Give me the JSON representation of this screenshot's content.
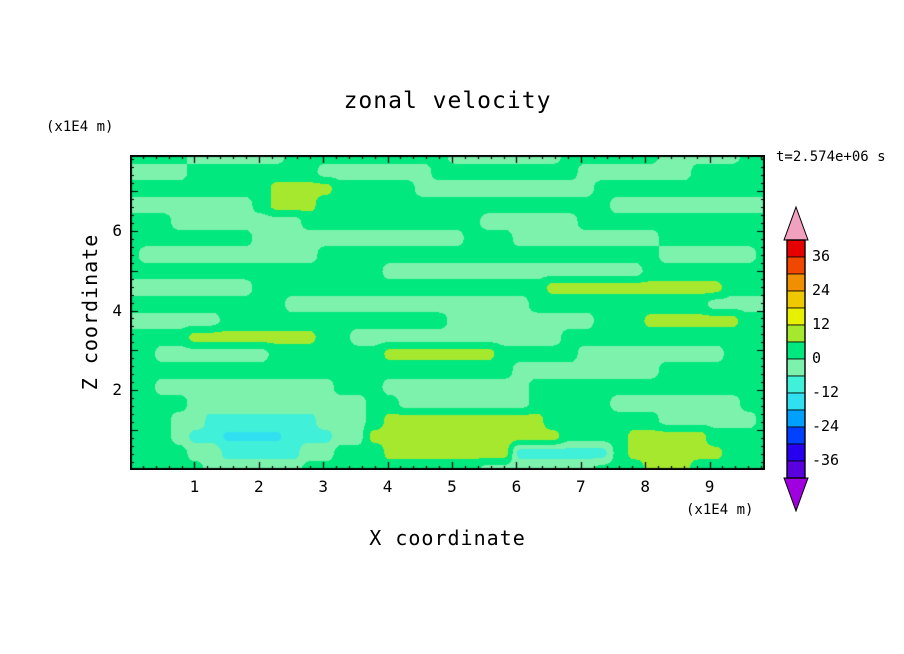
{
  "title": "zonal velocity",
  "annotations": {
    "time": "t=2.574e+06 s",
    "y_units": "(x1E4 m)",
    "x_units": "(x1E4 m)"
  },
  "axes": {
    "x_label": "X coordinate",
    "y_label": "Z coordinate",
    "x_ticks": [
      1,
      2,
      3,
      4,
      5,
      6,
      7,
      8,
      9
    ],
    "y_ticks": [
      2,
      4,
      6
    ],
    "x_range": [
      0,
      9.86
    ],
    "y_range": [
      0,
      7.9
    ],
    "minor_tick_step": 0.2
  },
  "colorbar": {
    "tick_labels": [
      36,
      24,
      12,
      0,
      -12,
      -24,
      -36
    ],
    "levels": [
      -42,
      -36,
      -30,
      -24,
      -18,
      -12,
      -6,
      0,
      6,
      12,
      18,
      24,
      30,
      36,
      42
    ],
    "colors": [
      "#5a00e0",
      "#2800f0",
      "#0040ff",
      "#00a0ff",
      "#30e0f0",
      "#40f0d8",
      "#7cf2ac",
      "#00e87e",
      "#a6e82e",
      "#e6f000",
      "#f0c800",
      "#f09000",
      "#f04800",
      "#e60000"
    ],
    "under_arrow_color": "#a000e0",
    "over_arrow_color": "#f2a0c0"
  },
  "chart_data": {
    "type": "heatmap",
    "title": "zonal velocity",
    "xlabel": "X coordinate (x1E4 m)",
    "ylabel": "Z coordinate (x1E4 m)",
    "time_annotation": "t=2.574e+06 s",
    "x_range": [
      0,
      9.86
    ],
    "y_range": [
      0,
      7.9
    ],
    "contour_interval": 6,
    "legend_position": "right",
    "note": "Filled-contour zonal velocity field. Values estimated from fill colors against the colorbar (contour interval 6). Grid rows ordered from top (y=7.9) to bottom (y=0), columns left (x=0) to right (x=9.86).",
    "grid_values": [
      [
        2,
        2,
        2,
        2,
        -2,
        -2,
        -2,
        -2,
        -2,
        -2,
        2,
        2,
        2,
        2,
        2,
        2,
        2,
        2,
        2,
        2,
        -2,
        -2,
        -2,
        -2,
        -2,
        -2,
        -2,
        2,
        2,
        2,
        2,
        2,
        2,
        -2,
        -2,
        -2,
        -2,
        -2,
        2,
        2
      ],
      [
        -2,
        -2,
        -2,
        -2,
        2,
        2,
        2,
        2,
        2,
        2,
        2,
        2,
        -2,
        -2,
        -2,
        -2,
        -2,
        -2,
        -2,
        2,
        2,
        2,
        2,
        2,
        2,
        2,
        2,
        2,
        -2,
        -2,
        -2,
        -2,
        -2,
        -2,
        -2,
        2,
        2,
        2,
        2,
        2
      ],
      [
        2,
        2,
        2,
        2,
        2,
        2,
        2,
        2,
        2,
        8,
        8,
        8,
        8,
        2,
        2,
        2,
        2,
        2,
        -2,
        -2,
        -2,
        -2,
        -2,
        -2,
        -2,
        -2,
        -2,
        -2,
        -2,
        2,
        2,
        2,
        2,
        2,
        2,
        2,
        2,
        2,
        2,
        2
      ],
      [
        -2,
        -2,
        -2,
        -2,
        -2,
        -2,
        -2,
        -2,
        2,
        8,
        8,
        8,
        2,
        2,
        2,
        2,
        2,
        2,
        2,
        2,
        2,
        2,
        2,
        2,
        2,
        2,
        2,
        2,
        2,
        2,
        -2,
        -2,
        -2,
        -2,
        -2,
        -2,
        -2,
        -2,
        -2,
        -2
      ],
      [
        2,
        2,
        2,
        -2,
        -2,
        -2,
        -2,
        -2,
        -2,
        -2,
        -2,
        2,
        2,
        2,
        2,
        2,
        2,
        2,
        2,
        2,
        2,
        2,
        -2,
        -2,
        -2,
        -2,
        -2,
        -2,
        2,
        2,
        2,
        2,
        2,
        2,
        2,
        2,
        2,
        2,
        2,
        2
      ],
      [
        2,
        2,
        2,
        2,
        2,
        2,
        2,
        2,
        -2,
        -2,
        -2,
        -2,
        -2,
        -2,
        -2,
        -2,
        -2,
        -2,
        -2,
        -2,
        -2,
        2,
        2,
        2,
        -2,
        -2,
        -2,
        -2,
        -2,
        -2,
        -2,
        -2,
        -2,
        2,
        2,
        2,
        2,
        2,
        2,
        2
      ],
      [
        2,
        -2,
        -2,
        -2,
        -2,
        -2,
        -2,
        -2,
        -2,
        -2,
        -2,
        -2,
        2,
        2,
        2,
        2,
        2,
        2,
        2,
        2,
        2,
        2,
        2,
        2,
        2,
        2,
        2,
        2,
        2,
        2,
        2,
        2,
        2,
        -2,
        -2,
        -2,
        -2,
        -2,
        -2,
        2
      ],
      [
        2,
        2,
        2,
        2,
        2,
        2,
        2,
        2,
        2,
        2,
        2,
        2,
        2,
        2,
        2,
        2,
        -2,
        -2,
        -2,
        -2,
        -2,
        -2,
        -2,
        -2,
        -2,
        -2,
        -2,
        -2,
        -2,
        -2,
        -2,
        -2,
        2,
        2,
        2,
        2,
        2,
        2,
        2,
        2
      ],
      [
        -2,
        -2,
        -2,
        -2,
        -2,
        -2,
        -2,
        -2,
        2,
        2,
        2,
        2,
        2,
        2,
        2,
        2,
        2,
        2,
        2,
        2,
        2,
        2,
        2,
        2,
        2,
        2,
        8,
        8,
        8,
        8,
        8,
        8,
        8,
        8,
        8,
        8,
        8,
        2,
        2,
        2
      ],
      [
        2,
        2,
        2,
        2,
        2,
        2,
        2,
        2,
        2,
        2,
        -2,
        -2,
        -2,
        -2,
        -2,
        -2,
        -2,
        -2,
        -2,
        -2,
        -2,
        -2,
        -2,
        -2,
        -2,
        2,
        2,
        2,
        2,
        2,
        2,
        2,
        2,
        2,
        2,
        2,
        -2,
        -2,
        -2,
        -2
      ],
      [
        -2,
        -2,
        -2,
        -2,
        -2,
        -2,
        2,
        2,
        2,
        2,
        2,
        2,
        2,
        2,
        2,
        2,
        2,
        2,
        2,
        2,
        -2,
        -2,
        -2,
        -2,
        -2,
        -2,
        -2,
        -2,
        -2,
        2,
        2,
        2,
        8,
        8,
        8,
        8,
        8,
        8,
        2,
        2
      ],
      [
        2,
        2,
        2,
        2,
        8,
        8,
        8,
        8,
        8,
        8,
        8,
        8,
        2,
        2,
        -2,
        -2,
        -2,
        -2,
        -2,
        -2,
        -2,
        -2,
        -2,
        -2,
        -2,
        -2,
        -2,
        2,
        2,
        2,
        2,
        2,
        2,
        2,
        2,
        2,
        2,
        2,
        2,
        2
      ],
      [
        2,
        2,
        -2,
        -2,
        -2,
        -2,
        -2,
        -2,
        -2,
        2,
        2,
        2,
        2,
        2,
        2,
        2,
        8,
        8,
        8,
        8,
        8,
        8,
        8,
        2,
        2,
        2,
        2,
        2,
        -2,
        -2,
        -2,
        -2,
        -2,
        -2,
        -2,
        -2,
        -2,
        2,
        2,
        2
      ],
      [
        2,
        2,
        2,
        2,
        2,
        2,
        2,
        2,
        2,
        2,
        2,
        2,
        2,
        2,
        2,
        2,
        2,
        2,
        2,
        2,
        2,
        2,
        2,
        2,
        -2,
        -2,
        -2,
        -2,
        -2,
        -2,
        -2,
        -2,
        -2,
        2,
        2,
        2,
        2,
        2,
        2,
        2
      ],
      [
        2,
        2,
        -2,
        -2,
        -2,
        -2,
        -2,
        -2,
        -2,
        -2,
        -2,
        -2,
        -2,
        2,
        2,
        2,
        -2,
        -2,
        -2,
        -2,
        -2,
        -2,
        -2,
        -2,
        -2,
        2,
        2,
        2,
        2,
        2,
        2,
        2,
        2,
        2,
        2,
        2,
        2,
        2,
        2,
        2
      ],
      [
        2,
        2,
        2,
        2,
        -2,
        -2,
        -2,
        -2,
        -2,
        -2,
        -2,
        -2,
        -2,
        -2,
        -2,
        2,
        2,
        -2,
        -2,
        -2,
        -2,
        -2,
        -2,
        -2,
        -2,
        2,
        2,
        2,
        2,
        2,
        -2,
        -2,
        -2,
        -2,
        -2,
        -2,
        -2,
        -2,
        2,
        2
      ],
      [
        2,
        2,
        2,
        -2,
        -2,
        -8,
        -8,
        -8,
        -8,
        -8,
        -8,
        -8,
        -2,
        -2,
        -2,
        2,
        8,
        8,
        8,
        8,
        8,
        8,
        8,
        8,
        8,
        8,
        2,
        2,
        2,
        2,
        2,
        2,
        2,
        -2,
        -2,
        -2,
        -2,
        -2,
        -2,
        2
      ],
      [
        2,
        2,
        2,
        -2,
        -8,
        -8,
        -13,
        -13,
        -13,
        -13,
        -8,
        -8,
        -8,
        -2,
        -2,
        8,
        8,
        8,
        8,
        8,
        8,
        8,
        8,
        8,
        8,
        8,
        8,
        2,
        2,
        2,
        2,
        8,
        8,
        8,
        8,
        8,
        2,
        2,
        2,
        2
      ],
      [
        2,
        2,
        2,
        2,
        -2,
        -2,
        -8,
        -8,
        -8,
        -8,
        -8,
        -2,
        -2,
        2,
        2,
        2,
        8,
        8,
        8,
        8,
        8,
        8,
        8,
        8,
        -8,
        -8,
        -8,
        -8,
        -8,
        -8,
        2,
        8,
        8,
        8,
        8,
        8,
        8,
        2,
        2,
        2
      ],
      [
        2,
        2,
        2,
        2,
        2,
        -2,
        -2,
        -2,
        -2,
        -2,
        -2,
        2,
        2,
        2,
        2,
        2,
        2,
        2,
        2,
        2,
        2,
        2,
        -2,
        -2,
        -2,
        -2,
        -2,
        -2,
        -2,
        2,
        2,
        2,
        8,
        8,
        8,
        2,
        2,
        2,
        2,
        2
      ]
    ]
  }
}
